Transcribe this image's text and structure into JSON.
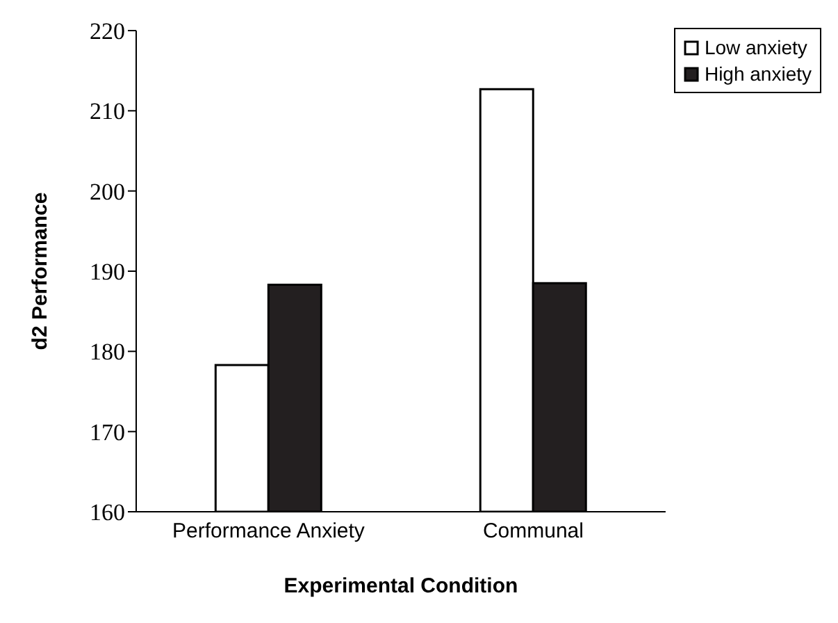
{
  "chart_data": {
    "type": "bar",
    "xlabel": "Experimental Condition",
    "ylabel": "d2 Performance",
    "categories": [
      "Performance Anxiety",
      "Communal"
    ],
    "series": [
      {
        "name": "Low anxiety",
        "color": "#ffffff",
        "values": [
          178.3,
          212.7
        ]
      },
      {
        "name": "High anxiety",
        "color": "#231f20",
        "values": [
          188.3,
          188.5
        ]
      }
    ],
    "ylim": [
      160,
      220
    ],
    "yticks": [
      160,
      170,
      180,
      190,
      200,
      210,
      220
    ],
    "grid": false,
    "legend": "top right"
  }
}
